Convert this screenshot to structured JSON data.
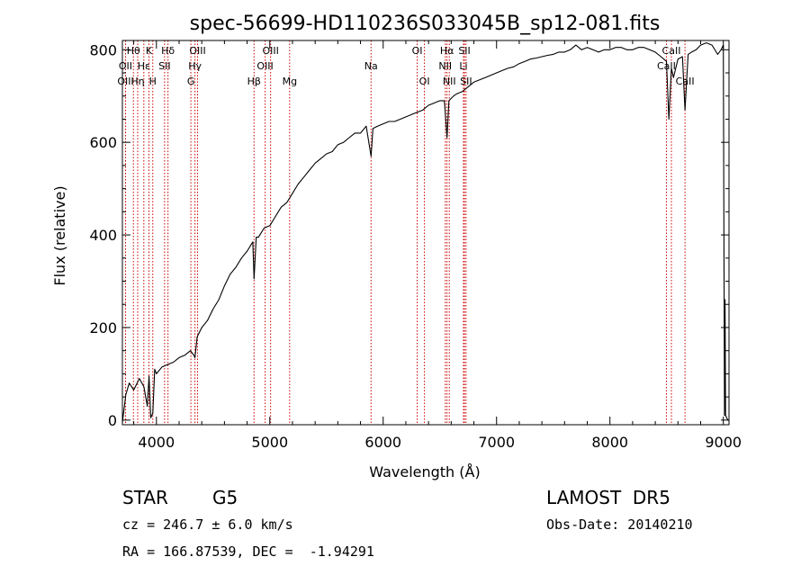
{
  "chart_data": {
    "type": "line",
    "title": "spec-56699-HD110236S033045B_sp12-081.fits",
    "xlabel": "Wavelength (Å)",
    "ylabel": "Flux (relative)",
    "xlim": [
      3700,
      9050
    ],
    "ylim": [
      -10,
      820
    ],
    "xticks": [
      4000,
      5000,
      6000,
      7000,
      8000,
      9000
    ],
    "yticks": [
      0,
      200,
      400,
      600,
      800
    ],
    "grid": false,
    "legend": "none",
    "series_color": "#000000",
    "line_marker_color": "#cc0000",
    "spectrum": {
      "x": [
        3700,
        3730,
        3760,
        3800,
        3850,
        3890,
        3920,
        3935,
        3950,
        3968,
        3985,
        4000,
        4050,
        4100,
        4150,
        4200,
        4250,
        4300,
        4330,
        4340,
        4360,
        4400,
        4450,
        4500,
        4550,
        4600,
        4650,
        4700,
        4750,
        4800,
        4850,
        4861,
        4880,
        4900,
        4950,
        5000,
        5050,
        5100,
        5150,
        5200,
        5250,
        5300,
        5350,
        5400,
        5450,
        5500,
        5550,
        5600,
        5650,
        5700,
        5750,
        5800,
        5850,
        5893,
        5910,
        5950,
        6000,
        6050,
        6100,
        6150,
        6200,
        6250,
        6300,
        6350,
        6400,
        6450,
        6500,
        6540,
        6563,
        6580,
        6620,
        6650,
        6700,
        6750,
        6800,
        6850,
        6900,
        6950,
        7000,
        7050,
        7100,
        7150,
        7200,
        7250,
        7300,
        7350,
        7400,
        7450,
        7500,
        7550,
        7600,
        7650,
        7700,
        7750,
        7800,
        7850,
        7900,
        7950,
        8000,
        8050,
        8100,
        8150,
        8200,
        8250,
        8300,
        8350,
        8400,
        8450,
        8498,
        8520,
        8542,
        8560,
        8600,
        8640,
        8662,
        8690,
        8720,
        8760,
        8800,
        8850,
        8900,
        8950,
        8980,
        9000,
        9010,
        9015,
        9020,
        9030,
        9040,
        9050
      ],
      "y": [
        -5,
        55,
        80,
        65,
        90,
        72,
        30,
        95,
        5,
        15,
        110,
        100,
        115,
        120,
        125,
        135,
        140,
        150,
        140,
        135,
        180,
        200,
        215,
        240,
        260,
        290,
        315,
        330,
        350,
        365,
        385,
        305,
        395,
        395,
        415,
        420,
        440,
        460,
        470,
        490,
        510,
        525,
        540,
        555,
        565,
        575,
        580,
        595,
        600,
        610,
        620,
        620,
        635,
        570,
        630,
        635,
        640,
        645,
        645,
        650,
        655,
        660,
        665,
        670,
        680,
        685,
        690,
        690,
        610,
        690,
        700,
        705,
        710,
        720,
        730,
        735,
        740,
        745,
        750,
        755,
        760,
        763,
        770,
        775,
        780,
        782,
        785,
        788,
        790,
        795,
        795,
        800,
        810,
        800,
        805,
        800,
        795,
        800,
        800,
        805,
        805,
        800,
        800,
        805,
        805,
        800,
        795,
        785,
        775,
        650,
        760,
        740,
        780,
        785,
        670,
        790,
        795,
        800,
        810,
        815,
        810,
        790,
        800,
        810,
        10,
        260,
        10,
        5,
        0,
        0
      ]
    },
    "lines": [
      {
        "name": "Hθ",
        "wavelength": 3797,
        "row": 0
      },
      {
        "name": "OII",
        "wavelength": 3727,
        "row": 1
      },
      {
        "name": "OIII",
        "wavelength": 3728,
        "row": 2
      },
      {
        "name": "Hη",
        "wavelength": 3835,
        "row": 2
      },
      {
        "name": "Hε",
        "wavelength": 3889,
        "row": 1
      },
      {
        "name": "K",
        "wavelength": 3934,
        "row": 0
      },
      {
        "name": "H",
        "wavelength": 3968,
        "row": 2
      },
      {
        "name": "SII",
        "wavelength": 4072,
        "row": 1
      },
      {
        "name": "Hδ",
        "wavelength": 4102,
        "row": 0
      },
      {
        "name": "G",
        "wavelength": 4304,
        "row": 2
      },
      {
        "name": "Hγ",
        "wavelength": 4340,
        "row": 1
      },
      {
        "name": "OIII",
        "wavelength": 4363,
        "row": 0
      },
      {
        "name": "Hβ",
        "wavelength": 4861,
        "row": 2
      },
      {
        "name": "OIII",
        "wavelength": 4959,
        "row": 1
      },
      {
        "name": "OIII",
        "wavelength": 5007,
        "row": 0
      },
      {
        "name": "Mg",
        "wavelength": 5175,
        "row": 2
      },
      {
        "name": "Na",
        "wavelength": 5893,
        "row": 1
      },
      {
        "name": "OI",
        "wavelength": 6300,
        "row": 0
      },
      {
        "name": "OI",
        "wavelength": 6364,
        "row": 2
      },
      {
        "name": "NII",
        "wavelength": 6548,
        "row": 1
      },
      {
        "name": "NII",
        "wavelength": 6583,
        "row": 2
      },
      {
        "name": "Hα",
        "wavelength": 6563,
        "row": 0
      },
      {
        "name": "SII",
        "wavelength": 6717,
        "row": 0
      },
      {
        "name": "Li",
        "wavelength": 6708,
        "row": 1
      },
      {
        "name": "SII",
        "wavelength": 6731,
        "row": 2
      },
      {
        "name": "CaII",
        "wavelength": 8498,
        "row": 1
      },
      {
        "name": "CaII",
        "wavelength": 8542,
        "row": 0
      },
      {
        "name": "CaII",
        "wavelength": 8662,
        "row": 2
      }
    ]
  },
  "info": {
    "class": "STAR",
    "subclass": "G5",
    "survey": "LAMOST  DR5",
    "cz": "cz = 246.7 ± 6.0 km/s",
    "obsdate": "Obs-Date: 20140210",
    "radec": "RA = 166.87539, DEC =  -1.94291"
  }
}
